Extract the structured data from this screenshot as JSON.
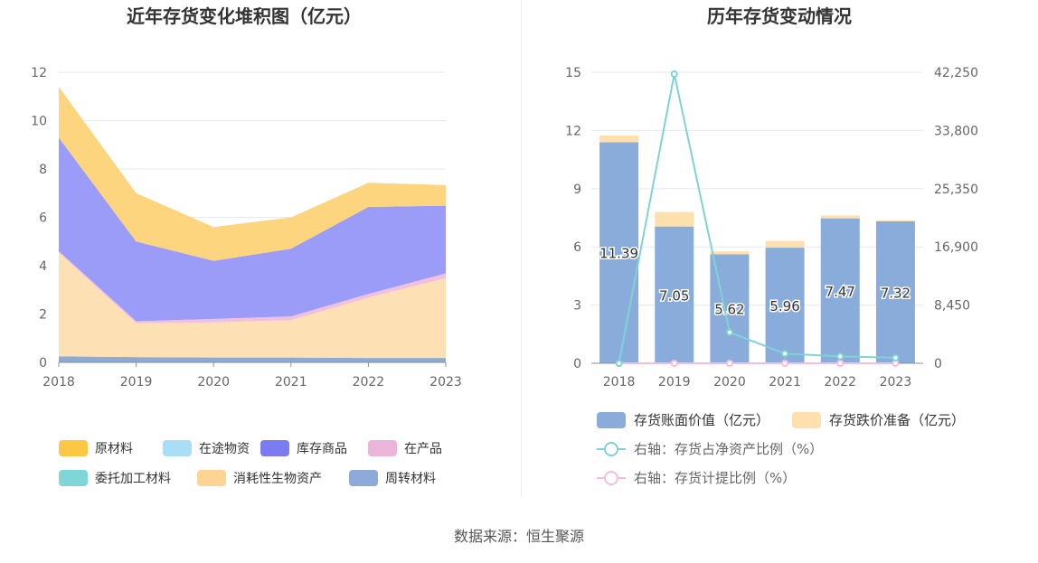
{
  "source_text": "数据来源：恒生聚源",
  "chart_data": [
    {
      "type": "area",
      "title": "近年存货变化堆积图（亿元）",
      "x": [
        "2018",
        "2019",
        "2020",
        "2021",
        "2022",
        "2023"
      ],
      "ylim": [
        0,
        12
      ],
      "yticks": [
        "0",
        "2",
        "4",
        "6",
        "8",
        "10",
        "12"
      ],
      "grid": true,
      "legend_position": "bottom",
      "series": [
        {
          "name": "周转材料",
          "color": "#8caad8",
          "values": [
            0.25,
            0.22,
            0.2,
            0.2,
            0.18,
            0.18
          ]
        },
        {
          "name": "消耗性生物资产",
          "color": "#fde1b4",
          "values": [
            4.3,
            1.4,
            1.45,
            1.55,
            2.5,
            3.3
          ]
        },
        {
          "name": "委托加工材料",
          "color": "#80d4d8",
          "values": [
            0,
            0,
            0,
            0,
            0,
            0
          ]
        },
        {
          "name": "在产品",
          "color": "#f2bfdc",
          "values": [
            0.05,
            0.08,
            0.15,
            0.15,
            0.15,
            0.2
          ]
        },
        {
          "name": "库存商品",
          "color": "#9a9cf7",
          "values": [
            4.7,
            3.3,
            2.4,
            2.8,
            3.6,
            2.8
          ]
        },
        {
          "name": "在途物资",
          "color": "#a9ddf4",
          "values": [
            0,
            0,
            0,
            0,
            0,
            0
          ]
        },
        {
          "name": "原材料",
          "color": "#fdd57e",
          "values": [
            2.1,
            2.0,
            1.4,
            1.3,
            1.0,
            0.85
          ]
        }
      ],
      "legend": [
        {
          "name": "原材料",
          "color": "#fcc843"
        },
        {
          "name": "在途物资",
          "color": "#a9def6"
        },
        {
          "name": "库存商品",
          "color": "#7b7cf2"
        },
        {
          "name": "在产品",
          "color": "#ebb5d9"
        },
        {
          "name": "委托加工材料",
          "color": "#7fd5d8"
        },
        {
          "name": "消耗性生物资产",
          "color": "#fdd494"
        },
        {
          "name": "周转材料",
          "color": "#8daad9"
        }
      ]
    },
    {
      "type": "bar",
      "title": "历年存货变动情况",
      "categories": [
        "2018",
        "2019",
        "2020",
        "2021",
        "2022",
        "2023"
      ],
      "ylim_left": [
        0,
        15
      ],
      "yticks_left": [
        "0",
        "3",
        "6",
        "9",
        "12",
        "15"
      ],
      "ylim_right": [
        0,
        42250
      ],
      "yticks_right": [
        "0",
        "8,450",
        "16,900",
        "25,350",
        "33,800",
        "42,250"
      ],
      "grid": true,
      "legend_position": "bottom",
      "series": [
        {
          "name": "存货账面价值（亿元）",
          "kind": "bar",
          "axis": "left",
          "color": "#8aacdb",
          "values": [
            11.39,
            7.05,
            5.62,
            5.96,
            7.47,
            7.32
          ],
          "labels": [
            "11.39",
            "7.05",
            "5.62",
            "5.96",
            "7.47",
            "7.32"
          ]
        },
        {
          "name": "存货跌价准备（亿元）",
          "kind": "bar",
          "axis": "left",
          "color": "#fde0ae",
          "values": [
            0.35,
            0.75,
            0.15,
            0.35,
            0.15,
            0.05
          ]
        },
        {
          "name": "右轴：存货占净资产比例（%）",
          "kind": "line",
          "axis": "right",
          "color": "#7ed3d6",
          "values": [
            0,
            42000,
            4500,
            1400,
            1000,
            800
          ]
        },
        {
          "name": "右轴：存货计提比例（%）",
          "kind": "line",
          "axis": "right",
          "color": "#f2bedc",
          "values": [
            0,
            0,
            0,
            0,
            0,
            0
          ]
        }
      ]
    }
  ]
}
